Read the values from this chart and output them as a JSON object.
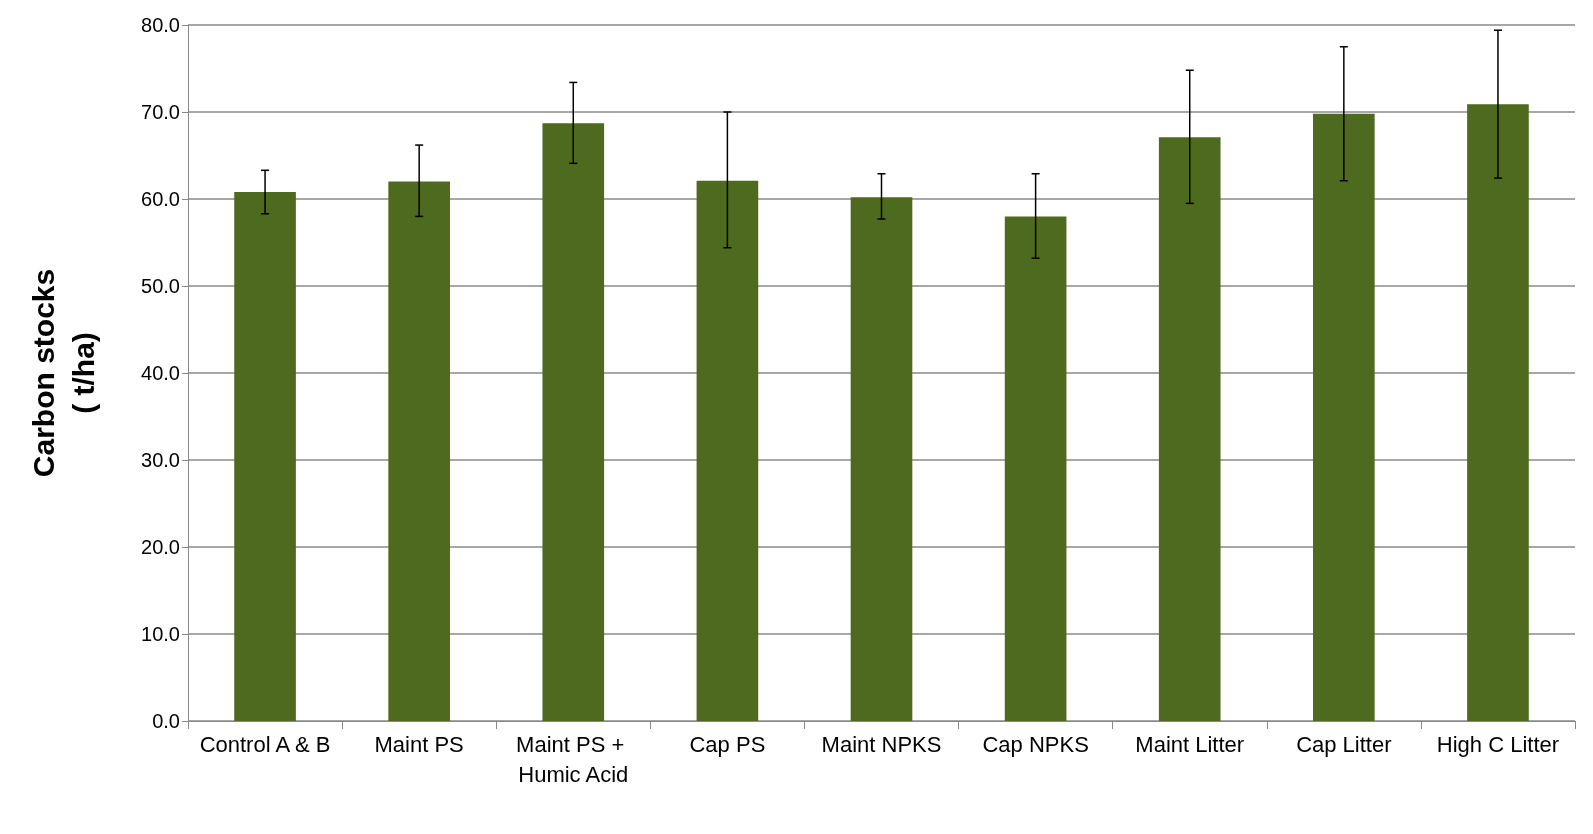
{
  "chart_data": {
    "type": "bar",
    "ylabel": "Carbon stocks\n( t/ha)",
    "categories": [
      "Control A & B",
      "Maint PS",
      "Maint PS + Humic Acid",
      "Cap PS",
      "Maint NPKS",
      "Cap NPKS",
      "Maint Litter",
      "Cap Litter",
      "High C Litter"
    ],
    "values": [
      60.8,
      62.0,
      68.7,
      62.1,
      60.2,
      58.0,
      67.1,
      69.8,
      70.9
    ],
    "errors": [
      [
        58.3,
        63.3
      ],
      [
        58.0,
        66.2
      ],
      [
        64.1,
        73.4
      ],
      [
        54.4,
        70.0
      ],
      [
        57.7,
        62.9
      ],
      [
        53.2,
        62.9
      ],
      [
        59.5,
        74.8
      ],
      [
        62.1,
        77.5
      ],
      [
        62.4,
        79.4
      ]
    ],
    "color": "#4e6a1e",
    "ylim": [
      0,
      80
    ],
    "yticks": [
      {
        "value": 0,
        "label": "0.0"
      },
      {
        "value": 10,
        "label": "10.0"
      },
      {
        "value": 20,
        "label": "20.0"
      },
      {
        "value": 30,
        "label": "30.0"
      },
      {
        "value": 40,
        "label": "40.0"
      },
      {
        "value": 50,
        "label": "50.0"
      },
      {
        "value": 60,
        "label": "60.0"
      },
      {
        "value": 70,
        "label": "70.0"
      },
      {
        "value": 80,
        "label": "80.0"
      }
    ],
    "grid": "y"
  }
}
